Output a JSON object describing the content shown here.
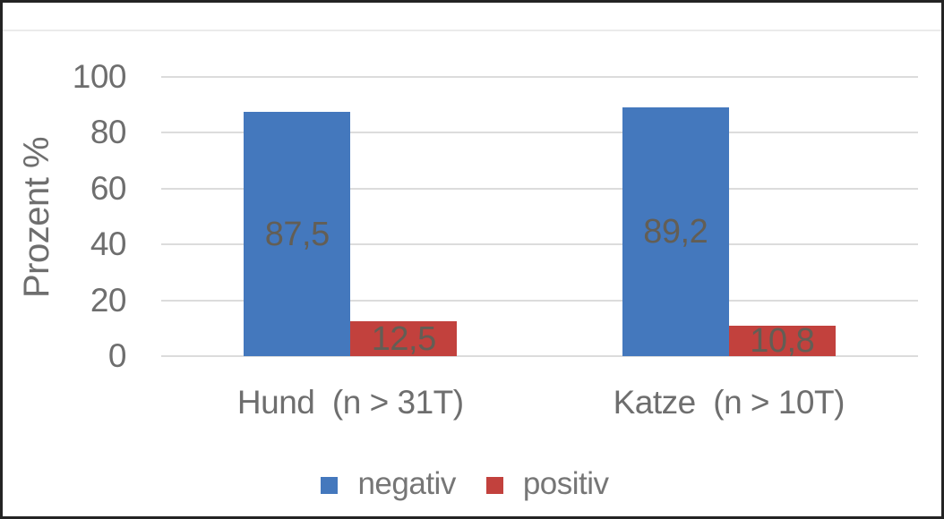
{
  "chart_data": {
    "type": "bar",
    "title": "",
    "ylabel": "Prozent %",
    "xlabel": "",
    "ylim": [
      0,
      100
    ],
    "yticks": [
      0,
      20,
      40,
      60,
      80,
      100
    ],
    "ytick_labels": [
      "0",
      "20",
      "40",
      "60",
      "80",
      "100"
    ],
    "categories": [
      "Hund  (n > 31T)",
      "Katze  (n > 10T)"
    ],
    "series": [
      {
        "name": "negativ",
        "color": "#4478BD",
        "values": [
          87.5,
          89.2
        ],
        "value_labels": [
          "87,5",
          "89,2"
        ]
      },
      {
        "name": "positiv",
        "color": "#C2413D",
        "values": [
          12.5,
          10.8
        ],
        "value_labels": [
          "12,5",
          "10,8"
        ]
      }
    ],
    "grid": true,
    "legend_position": "bottom",
    "colors": {
      "gridline": "#dcdcdc",
      "axis_text": "#6e6e6e",
      "data_label_text": "#635e55",
      "legend_text": "#767676",
      "frame_border": "#232323",
      "background": "#ffffff"
    }
  }
}
